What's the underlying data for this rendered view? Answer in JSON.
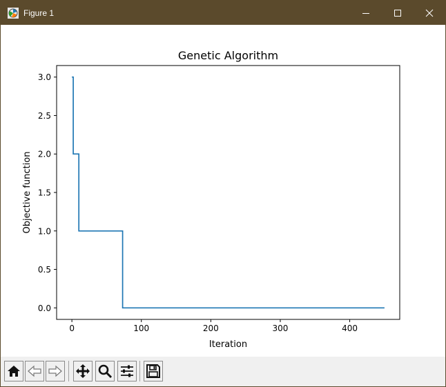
{
  "window": {
    "title": "Figure 1",
    "title_bar_color": "#5b4a2c",
    "controls": [
      "minimize-icon",
      "maximize-icon",
      "close-icon"
    ]
  },
  "toolbar": {
    "buttons": [
      {
        "name": "home-button",
        "icon": "home-icon"
      },
      {
        "name": "back-button",
        "icon": "arrow-left-icon"
      },
      {
        "name": "forward-button",
        "icon": "arrow-right-icon"
      },
      {
        "name": "pan-button",
        "icon": "move-icon"
      },
      {
        "name": "zoom-button",
        "icon": "magnifier-icon"
      },
      {
        "name": "configure-subplots-button",
        "icon": "sliders-icon"
      },
      {
        "name": "save-button",
        "icon": "floppy-disk-icon"
      }
    ]
  },
  "chart_data": {
    "type": "line",
    "title": "Genetic Algorithm",
    "xlabel": "Iteration",
    "ylabel": "Objective function",
    "xlim": [
      -22,
      472
    ],
    "ylim": [
      -0.15,
      3.15
    ],
    "xticks": [
      0,
      100,
      200,
      300,
      400
    ],
    "xtick_labels": [
      "0",
      "100",
      "200",
      "300",
      "400"
    ],
    "yticks": [
      0.0,
      0.5,
      1.0,
      1.5,
      2.0,
      2.5,
      3.0
    ],
    "ytick_labels": [
      "0.0",
      "0.5",
      "1.0",
      "1.5",
      "2.0",
      "2.5",
      "3.0"
    ],
    "grid": false,
    "line_color": "#1f77b4",
    "series": [
      {
        "x": [
          0,
          2,
          2,
          10,
          10,
          73,
          73,
          450
        ],
        "y": [
          3,
          3,
          2,
          2,
          1,
          1,
          0,
          0
        ]
      }
    ]
  }
}
